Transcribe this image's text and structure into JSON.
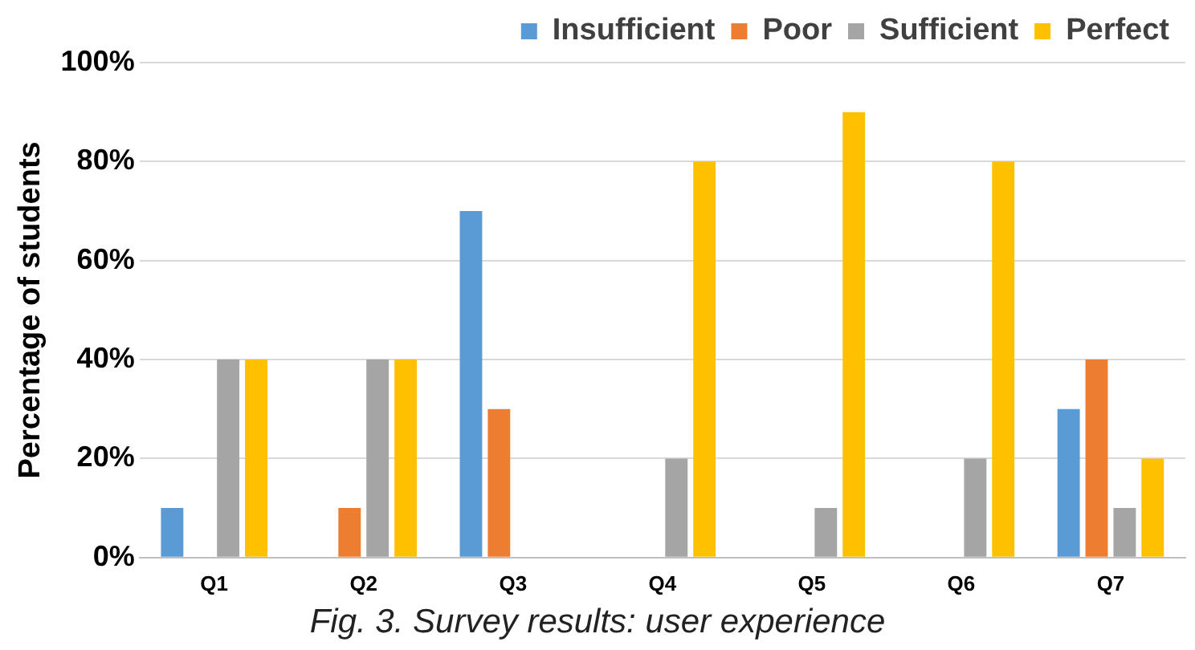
{
  "chart_data": {
    "type": "bar",
    "ylabel": "Percentage of students",
    "categories": [
      "Q1",
      "Q2",
      "Q3",
      "Q4",
      "Q5",
      "Q6",
      "Q7"
    ],
    "series": [
      {
        "name": "Insufficient",
        "color": "#5b9bd5",
        "values": [
          10,
          0,
          70,
          0,
          0,
          0,
          30
        ]
      },
      {
        "name": "Poor",
        "color": "#ed7d31",
        "values": [
          0,
          10,
          30,
          0,
          0,
          0,
          40
        ]
      },
      {
        "name": "Sufficient",
        "color": "#a5a5a5",
        "values": [
          40,
          40,
          0,
          20,
          10,
          20,
          10
        ]
      },
      {
        "name": "Perfect",
        "color": "#ffc000",
        "values": [
          40,
          40,
          0,
          80,
          90,
          80,
          20
        ]
      }
    ],
    "ylim": [
      0,
      100
    ],
    "yticks": [
      {
        "value": 0,
        "label": "0%"
      },
      {
        "value": 20,
        "label": "20%"
      },
      {
        "value": 40,
        "label": "40%"
      },
      {
        "value": 60,
        "label": "60%"
      },
      {
        "value": 80,
        "label": "80%"
      },
      {
        "value": 100,
        "label": "100%"
      }
    ],
    "grid": "y",
    "legend": "top",
    "annotations": [
      "Fig. 3. Survey results: user experience"
    ]
  }
}
